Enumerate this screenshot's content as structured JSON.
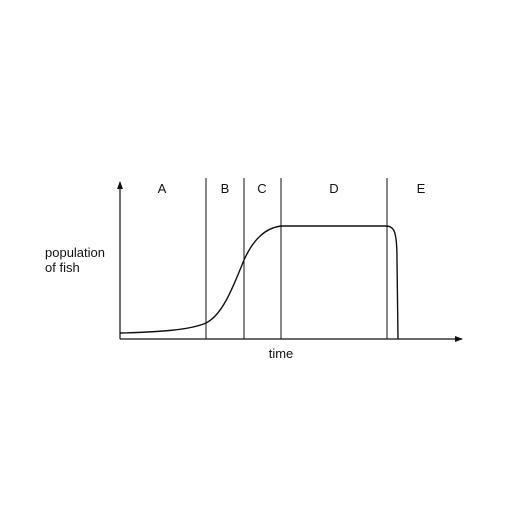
{
  "diagram": {
    "y_axis_label_line1": "population",
    "y_axis_label_line2": "of fish",
    "x_axis_label": "time",
    "phases": [
      {
        "label": "A"
      },
      {
        "label": "B"
      },
      {
        "label": "C"
      },
      {
        "label": "D"
      },
      {
        "label": "E"
      }
    ]
  }
}
